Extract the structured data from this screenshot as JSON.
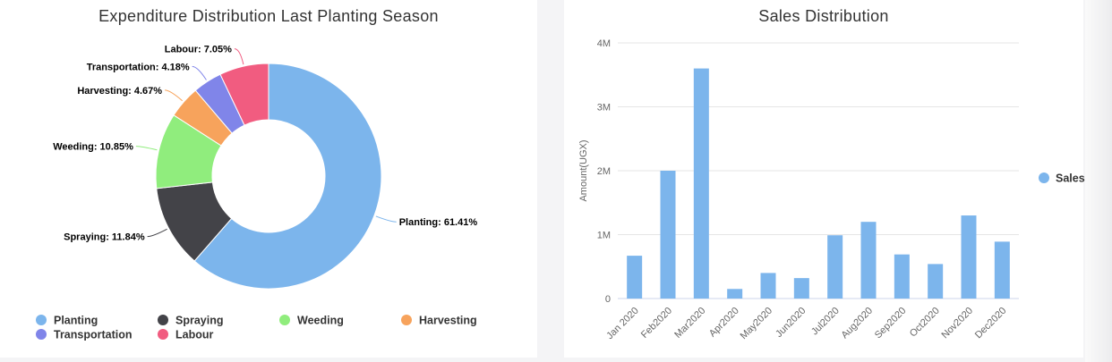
{
  "chart_data": [
    {
      "type": "pie",
      "title": "Expenditure Distribution Last Planting Season",
      "donut": true,
      "slices": [
        {
          "name": "Planting",
          "value": 61.41,
          "label": "Planting: 61.41%",
          "color": "#7cb5ec"
        },
        {
          "name": "Spraying",
          "value": 11.84,
          "label": "Spraying: 11.84%",
          "color": "#434348"
        },
        {
          "name": "Weeding",
          "value": 10.85,
          "label": "Weeding: 10.85%",
          "color": "#90ed7d"
        },
        {
          "name": "Harvesting",
          "value": 4.67,
          "label": "Harvesting: 4.67%",
          "color": "#f7a35c"
        },
        {
          "name": "Transportation",
          "value": 4.18,
          "label": "Transportation: 4.18%",
          "color": "#8085e9"
        },
        {
          "name": "Labour",
          "value": 7.05,
          "label": "Labour: 7.05%",
          "color": "#f15c80"
        }
      ],
      "legend_position": "bottom"
    },
    {
      "type": "bar",
      "title": "Sales Distribution",
      "ylabel": "Amount(UGX)",
      "ylim": [
        0,
        4000000
      ],
      "yticks": [
        {
          "value": 0,
          "label": "0"
        },
        {
          "value": 1000000,
          "label": "1M"
        },
        {
          "value": 2000000,
          "label": "2M"
        },
        {
          "value": 3000000,
          "label": "3M"
        },
        {
          "value": 4000000,
          "label": "4M"
        }
      ],
      "categories": [
        "Jan 2020",
        "Feb2020",
        "Mar2020",
        "Apr2020",
        "May2020",
        "Jun2020",
        "Jul2020",
        "Aug2020",
        "Sep2020",
        "Oct2020",
        "Nov2020",
        "Dec2020"
      ],
      "series": [
        {
          "name": "Sales",
          "color": "#7cb5ec",
          "values": [
            670000,
            2000000,
            3600000,
            150000,
            400000,
            320000,
            990000,
            1200000,
            690000,
            540000,
            1300000,
            890000
          ]
        }
      ],
      "legend_position": "right",
      "grid": true
    }
  ]
}
